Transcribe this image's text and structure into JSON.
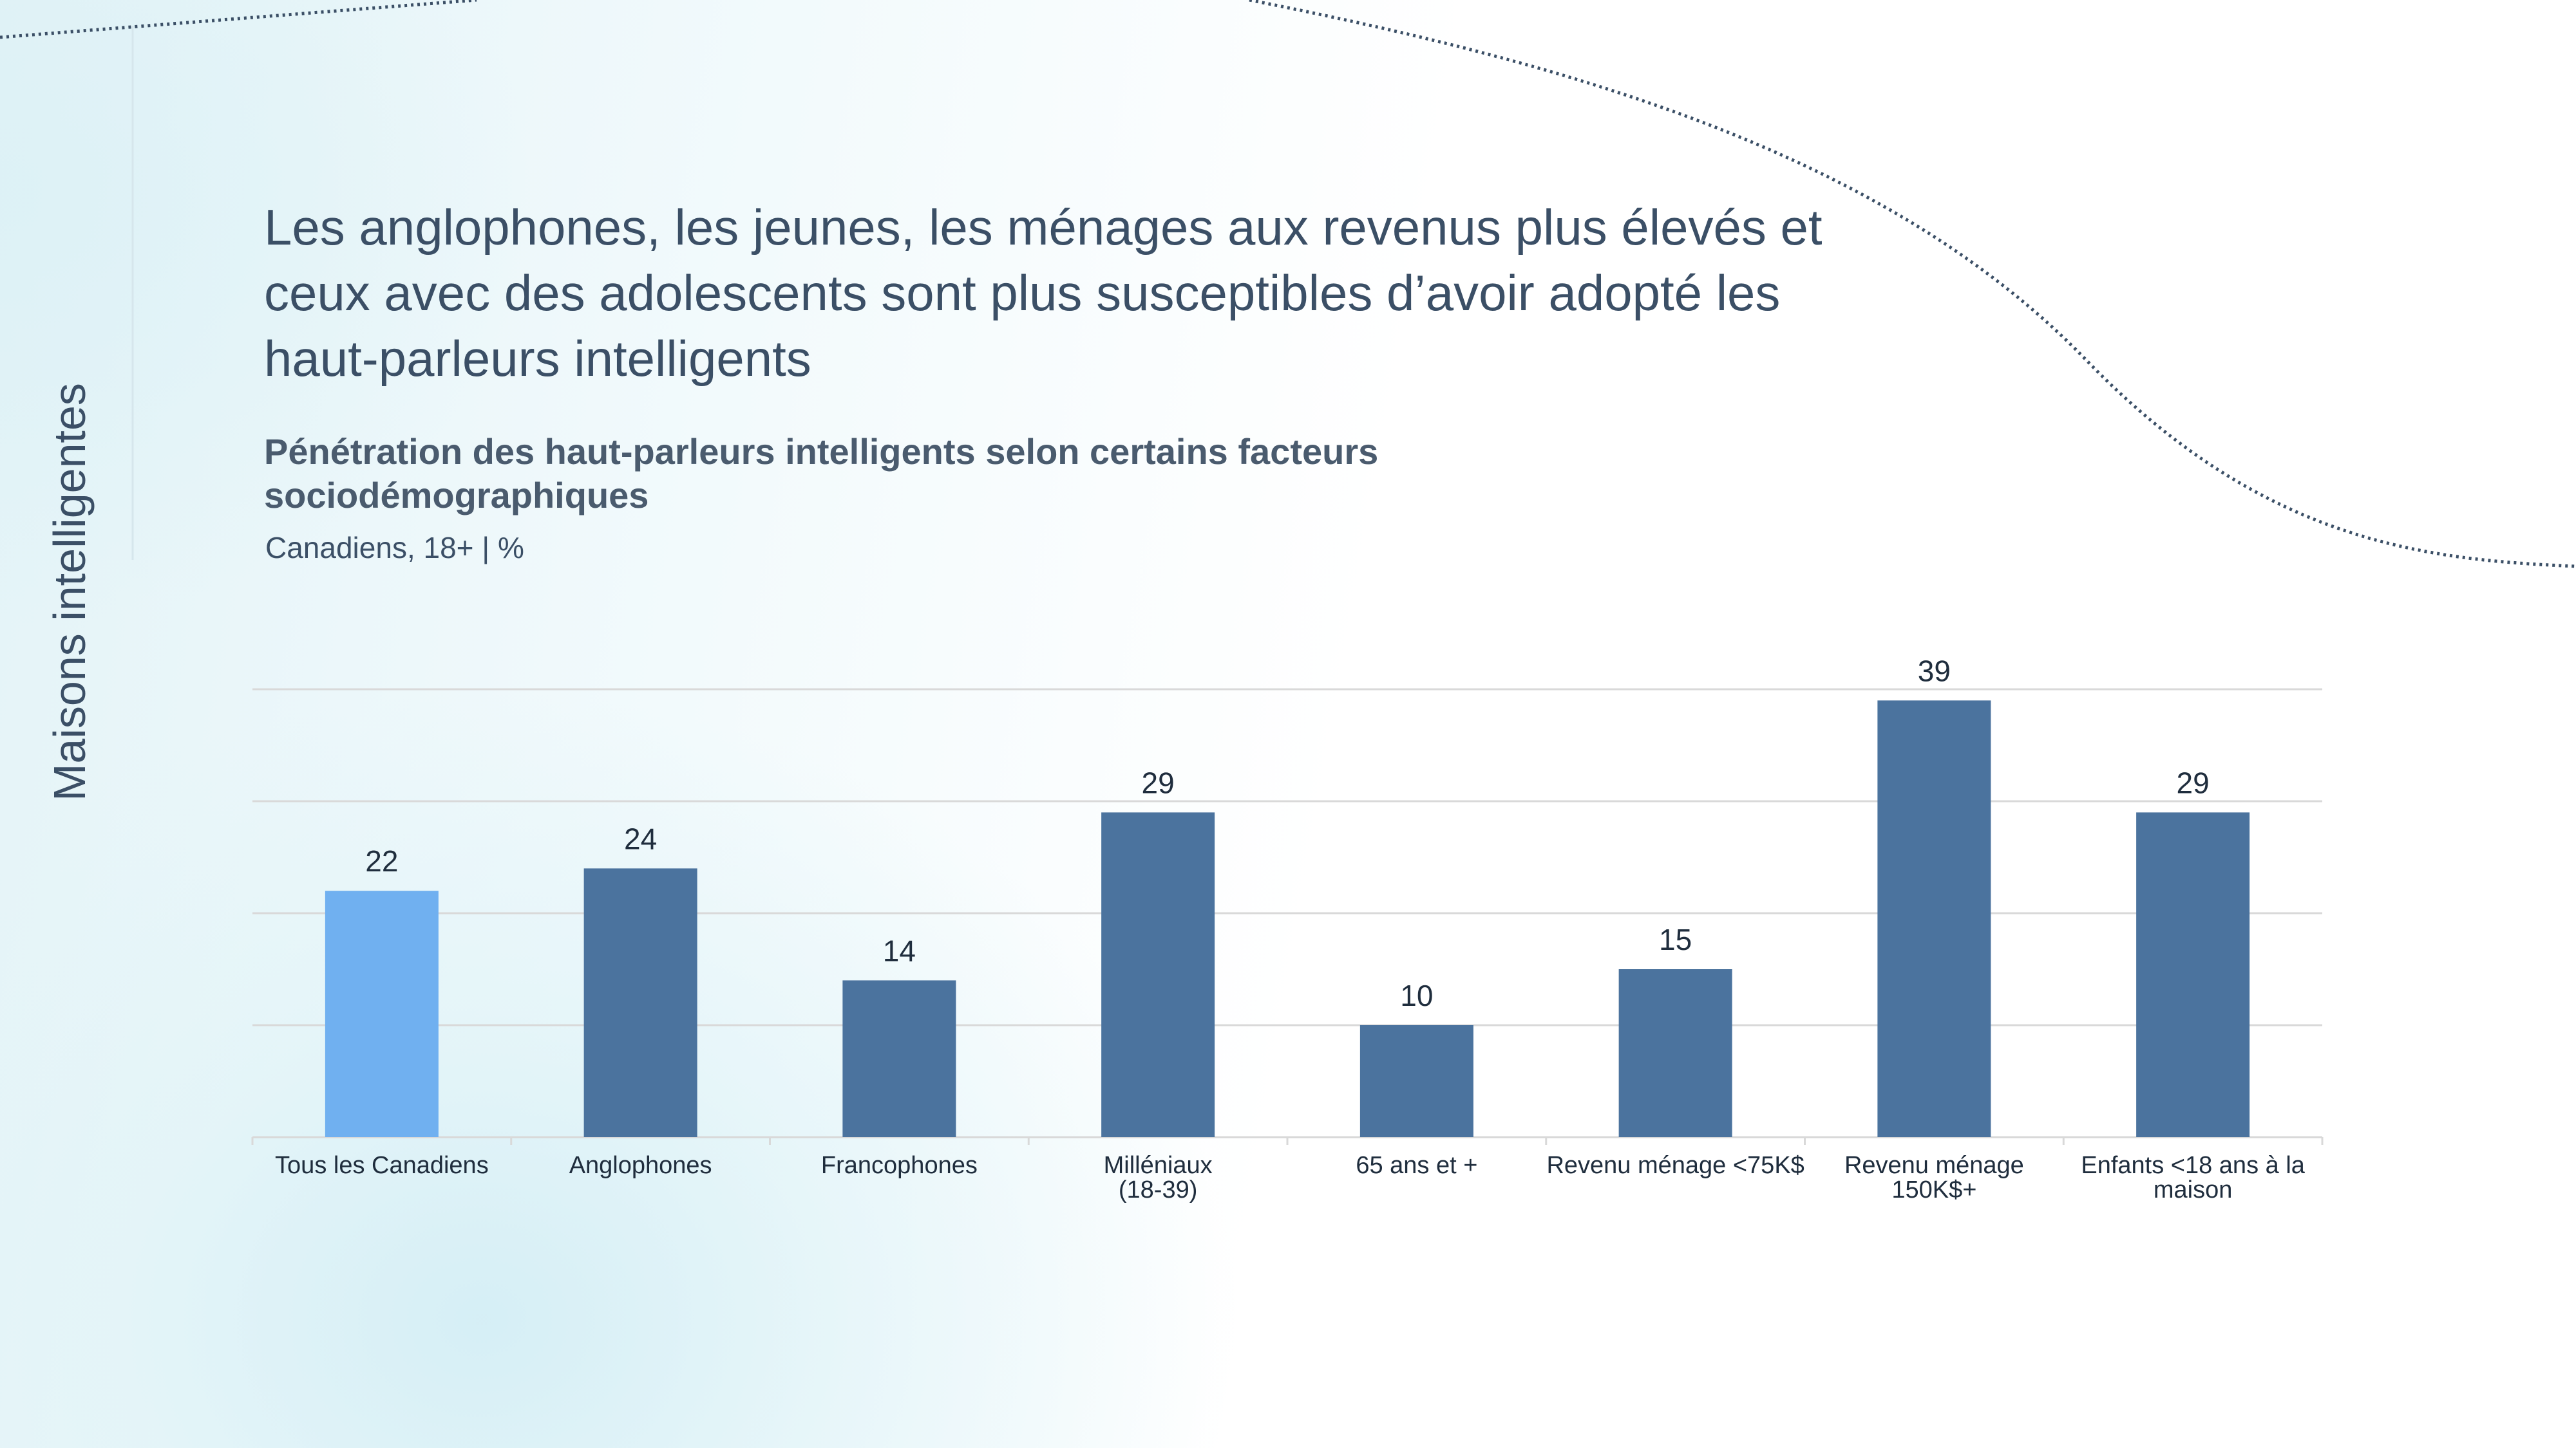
{
  "slide": {
    "section": "Maisons intelligentes",
    "headline": "Les anglophones, les jeunes, les ménages aux revenus plus élevés et ceux avec des adolescents sont plus susceptibles d’avoir adopté les haut-parleurs intelligents"
  },
  "chart_data": {
    "type": "bar",
    "title": "Pénétration des haut-parleurs intelligents selon certains facteurs sociodémographiques",
    "subtitle": "Canadiens, 18+ | %",
    "categories": [
      [
        "Tous les Canadiens"
      ],
      [
        "Anglophones"
      ],
      [
        "Francophones"
      ],
      [
        "Milléniaux",
        "(18-39)"
      ],
      [
        "65 ans et +"
      ],
      [
        "Revenu ménage <75K$"
      ],
      [
        "Revenu ménage",
        "150K$+"
      ],
      [
        "Enfants <18 ans à la",
        "maison"
      ]
    ],
    "values": [
      22,
      24,
      14,
      29,
      10,
      15,
      39,
      29
    ],
    "highlight_index": 0,
    "ylim": [
      0,
      40
    ],
    "grid": true,
    "data_labels": true,
    "colors": {
      "bar": "#4b739e",
      "highlight": "#70b0f0",
      "grid": "#d9d9d9",
      "label": "#1f2d3d"
    }
  }
}
